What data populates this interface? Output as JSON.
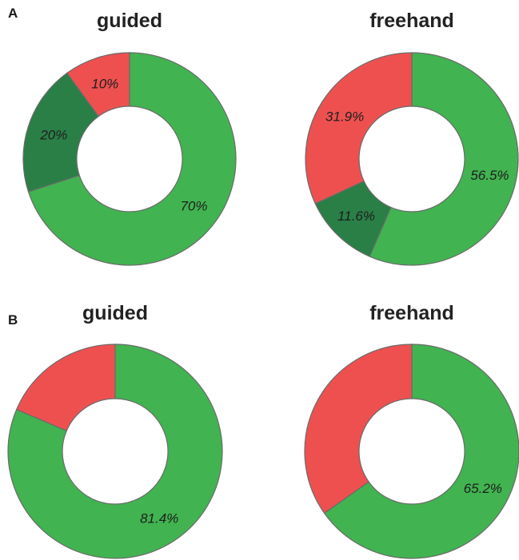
{
  "panels": [
    {
      "letter": "A"
    },
    {
      "letter": "B"
    }
  ],
  "colors": {
    "success": "#41b350",
    "partial": "#2a7f47",
    "failure": "#ee5050",
    "edge": "#6b6b6b"
  },
  "chart_data": [
    {
      "type": "pie",
      "panel": "A",
      "title": "guided",
      "donut": true,
      "slices": [
        {
          "value": 70,
          "label": "70%",
          "color": "#41b350"
        },
        {
          "value": 20,
          "label": "20%",
          "color": "#2a7f47"
        },
        {
          "value": 10,
          "label": "10%",
          "color": "#ee5050"
        }
      ]
    },
    {
      "type": "pie",
      "panel": "A",
      "title": "freehand",
      "donut": true,
      "slices": [
        {
          "value": 56.5,
          "label": "56.5%",
          "color": "#41b350"
        },
        {
          "value": 11.6,
          "label": "11.6%",
          "color": "#2a7f47"
        },
        {
          "value": 31.9,
          "label": "31.9%",
          "color": "#ee5050"
        }
      ]
    },
    {
      "type": "pie",
      "panel": "B",
      "title": "guided",
      "donut": true,
      "slices": [
        {
          "value": 81.4,
          "label": "81.4%",
          "color": "#41b350"
        },
        {
          "value": 18.6,
          "label": "",
          "color": "#ee5050"
        }
      ]
    },
    {
      "type": "pie",
      "panel": "B",
      "title": "freehand",
      "donut": true,
      "slices": [
        {
          "value": 65.2,
          "label": "65.2%",
          "color": "#41b350"
        },
        {
          "value": 34.8,
          "label": "",
          "color": "#ee5050"
        }
      ]
    }
  ]
}
